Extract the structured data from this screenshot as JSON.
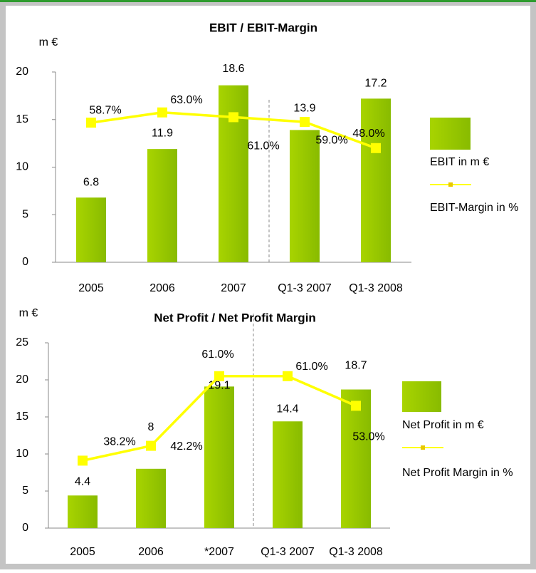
{
  "chart_data": [
    {
      "type": "bar",
      "title": "EBIT / EBIT-Margin",
      "y_unit": "m €",
      "categories": [
        "2005",
        "2006",
        "2007",
        "Q1-3 2007",
        "Q1-3 2008"
      ],
      "ylim": [
        0,
        20
      ],
      "yticks": [
        0,
        5,
        10,
        15,
        20
      ],
      "y2lim": [
        0,
        80
      ],
      "grid": false,
      "series": [
        {
          "name": "EBIT in m €",
          "type": "bar",
          "color": "#99cc00",
          "values": [
            6.8,
            11.9,
            18.6,
            13.9,
            17.2
          ]
        },
        {
          "name": "EBIT-Margin in %",
          "type": "line",
          "axis": "y2",
          "color": "#ffff00",
          "values": [
            58.7,
            63.0,
            61.0,
            59.0,
            48.0
          ],
          "value_labels": [
            "58.7%",
            "63.0%",
            "61.0%",
            "59.0%",
            "48.0%"
          ]
        }
      ]
    },
    {
      "type": "bar",
      "title": "Net Profit / Net Profit Margin",
      "y_unit": "m €",
      "categories": [
        "2005",
        "2006",
        "*2007",
        "Q1-3 2007",
        "Q1-3 2008"
      ],
      "ylim": [
        0,
        25
      ],
      "yticks": [
        0,
        5,
        10,
        15,
        20,
        25
      ],
      "y2lim": [
        20,
        70
      ],
      "grid": false,
      "series": [
        {
          "name": "Net Profit in m €",
          "type": "bar",
          "color": "#99cc00",
          "values": [
            4.4,
            8,
            19.1,
            14.4,
            18.7
          ]
        },
        {
          "name": "Net Profit Margin in %",
          "type": "line",
          "axis": "y2",
          "color": "#ffff00",
          "values": [
            38.2,
            42.2,
            61.0,
            61.0,
            53.0
          ],
          "value_labels": [
            "38.2%",
            "42.2%",
            "61.0%",
            "61.0%",
            "53.0%"
          ]
        }
      ]
    }
  ]
}
